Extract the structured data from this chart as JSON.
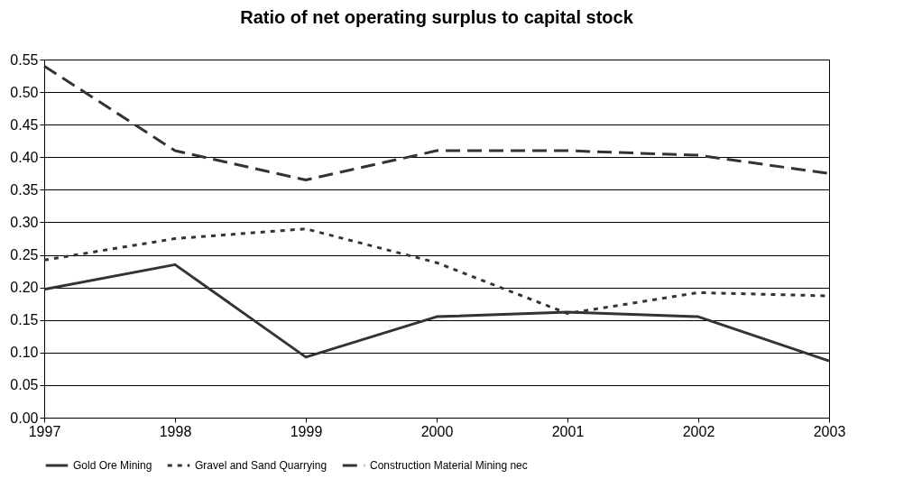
{
  "chart_data": {
    "type": "line",
    "title": "Ratio of net operating surplus to capital stock",
    "x": [
      1997,
      1998,
      1999,
      2000,
      2001,
      2002,
      2003
    ],
    "series": [
      {
        "name": "Gold Ore Mining",
        "color": "#333333",
        "line_style": "solid",
        "values": [
          0.197,
          0.235,
          0.093,
          0.155,
          0.162,
          0.155,
          0.087
        ]
      },
      {
        "name": "Gravel and Sand Quarrying",
        "color": "#333333",
        "line_style": "dotted",
        "values": [
          0.242,
          0.275,
          0.29,
          0.238,
          0.16,
          0.192,
          0.187
        ]
      },
      {
        "name": "Construction Material Mining nec",
        "color": "#333333",
        "line_style": "dashed",
        "values": [
          0.54,
          0.41,
          0.365,
          0.41,
          0.41,
          0.403,
          0.375
        ]
      }
    ],
    "xlim": [
      1997,
      2003
    ],
    "xticks": [
      1997,
      1998,
      1999,
      2000,
      2001,
      2002,
      2003
    ],
    "ylim": [
      0,
      0.55
    ],
    "yticks": [
      {
        "value": 0,
        "label": "0.00"
      },
      {
        "value": 0.05,
        "label": "0.05"
      },
      {
        "value": 0.1,
        "label": "0.10"
      },
      {
        "value": 0.15,
        "label": "0.15"
      },
      {
        "value": 0.2,
        "label": "0.20"
      },
      {
        "value": 0.25,
        "label": "0.25"
      },
      {
        "value": 0.3,
        "label": "0.30"
      },
      {
        "value": 0.35,
        "label": "0.35"
      },
      {
        "value": 0.4,
        "label": "0.40"
      },
      {
        "value": 0.45,
        "label": "0.45"
      },
      {
        "value": 0.5,
        "label": "0.50"
      },
      {
        "value": 0.55,
        "label": "0.55"
      }
    ],
    "grid": "y",
    "legend": "bottom",
    "marker": "none"
  }
}
